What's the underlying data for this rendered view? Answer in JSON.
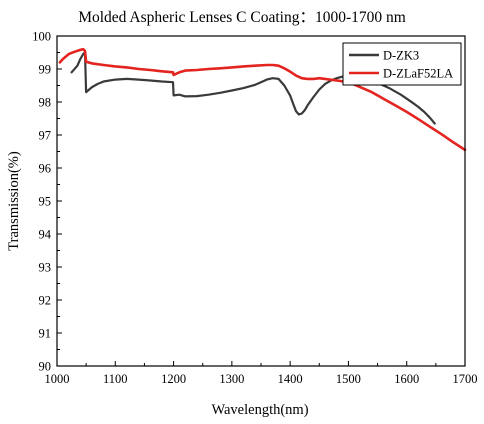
{
  "chart_data": {
    "type": "line",
    "title": "Molded Aspheric Lenses C Coating：1000-1700 nm",
    "xlabel": "Wavelength(nm)",
    "ylabel": "Transmission(%)",
    "xlim": [
      1000,
      1700
    ],
    "ylim": [
      90,
      100
    ],
    "xticks": [
      1000,
      1100,
      1200,
      1300,
      1400,
      1500,
      1600,
      1700
    ],
    "yticks": [
      90,
      91,
      92,
      93,
      94,
      95,
      96,
      97,
      98,
      99,
      100
    ],
    "grid": false,
    "legend_position": "top-right",
    "series": [
      {
        "name": "D-ZK3",
        "color": "#3a3a3a",
        "x": [
          1025,
          1035,
          1040,
          1045,
          1048,
          1050,
          1060,
          1070,
          1080,
          1100,
          1120,
          1140,
          1160,
          1180,
          1199,
          1200,
          1210,
          1220,
          1240,
          1260,
          1280,
          1300,
          1320,
          1340,
          1350,
          1360,
          1370,
          1380,
          1390,
          1400,
          1405,
          1410,
          1415,
          1420,
          1425,
          1430,
          1440,
          1450,
          1460,
          1470,
          1480,
          1490,
          1500,
          1510,
          1520,
          1530,
          1540,
          1550,
          1560,
          1570,
          1580,
          1590,
          1600,
          1610,
          1620,
          1630,
          1640,
          1648
        ],
        "y": [
          98.9,
          99.1,
          99.3,
          99.45,
          99.5,
          98.3,
          98.45,
          98.55,
          98.62,
          98.68,
          98.7,
          98.68,
          98.65,
          98.62,
          98.6,
          98.2,
          98.22,
          98.17,
          98.18,
          98.22,
          98.28,
          98.35,
          98.42,
          98.52,
          98.6,
          98.68,
          98.72,
          98.7,
          98.5,
          98.2,
          97.95,
          97.72,
          97.62,
          97.65,
          97.75,
          97.9,
          98.15,
          98.38,
          98.55,
          98.65,
          98.72,
          98.77,
          98.78,
          98.77,
          98.74,
          98.7,
          98.65,
          98.58,
          98.5,
          98.42,
          98.32,
          98.22,
          98.1,
          97.98,
          97.85,
          97.7,
          97.52,
          97.35
        ]
      },
      {
        "name": "D-ZLaF52LA",
        "color": "#e3241f",
        "x": [
          1005,
          1010,
          1020,
          1030,
          1040,
          1045,
          1048,
          1050,
          1060,
          1080,
          1100,
          1120,
          1140,
          1160,
          1180,
          1199,
          1200,
          1210,
          1220,
          1240,
          1260,
          1280,
          1300,
          1320,
          1340,
          1360,
          1370,
          1380,
          1390,
          1400,
          1410,
          1420,
          1430,
          1440,
          1450,
          1460,
          1480,
          1500,
          1520,
          1540,
          1560,
          1580,
          1600,
          1620,
          1640,
          1660,
          1680,
          1700
        ],
        "y": [
          99.2,
          99.3,
          99.45,
          99.52,
          99.58,
          99.6,
          99.55,
          99.22,
          99.17,
          99.12,
          99.08,
          99.05,
          99.0,
          98.97,
          98.93,
          98.9,
          98.82,
          98.9,
          98.95,
          98.97,
          99.0,
          99.02,
          99.05,
          99.08,
          99.1,
          99.12,
          99.12,
          99.1,
          99.02,
          98.92,
          98.8,
          98.72,
          98.7,
          98.7,
          98.72,
          98.7,
          98.65,
          98.6,
          98.45,
          98.3,
          98.1,
          97.9,
          97.7,
          97.48,
          97.25,
          97.02,
          96.78,
          96.55
        ]
      }
    ]
  }
}
